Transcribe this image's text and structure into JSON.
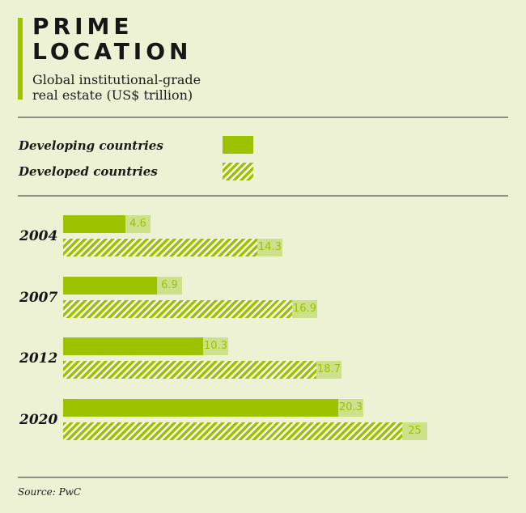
{
  "header": {
    "title_line1": "PRIME",
    "title_line2": "LOCATION",
    "subtitle_line1": "Global institutional-grade",
    "subtitle_line2": "real estate (US$ trillion)"
  },
  "colors": {
    "accent": "#9dc200",
    "label_bg": "#cde08a",
    "background": "#ecf2d3"
  },
  "legend": [
    {
      "label": "Developing countries",
      "style": "solid"
    },
    {
      "label": "Developed countries",
      "style": "hatched"
    }
  ],
  "source": "Source: PwC",
  "chart_data": {
    "type": "bar",
    "orientation": "horizontal",
    "title": "PRIME LOCATION",
    "subtitle": "Global institutional-grade real estate (US$ trillion)",
    "categories": [
      "2004",
      "2007",
      "2012",
      "2020"
    ],
    "series": [
      {
        "name": "Developing countries",
        "values": [
          4.6,
          6.9,
          10.3,
          20.3
        ],
        "labels": [
          "4.6",
          "6.9",
          "10.3",
          "20.3"
        ]
      },
      {
        "name": "Developed countries",
        "values": [
          14.3,
          16.9,
          18.7,
          25
        ],
        "labels": [
          "14.3",
          "16.9",
          "18.7",
          "25"
        ]
      }
    ],
    "xlabel": "",
    "ylabel": "",
    "xlim": [
      0,
      25
    ],
    "grid": false,
    "legend_position": "top"
  }
}
